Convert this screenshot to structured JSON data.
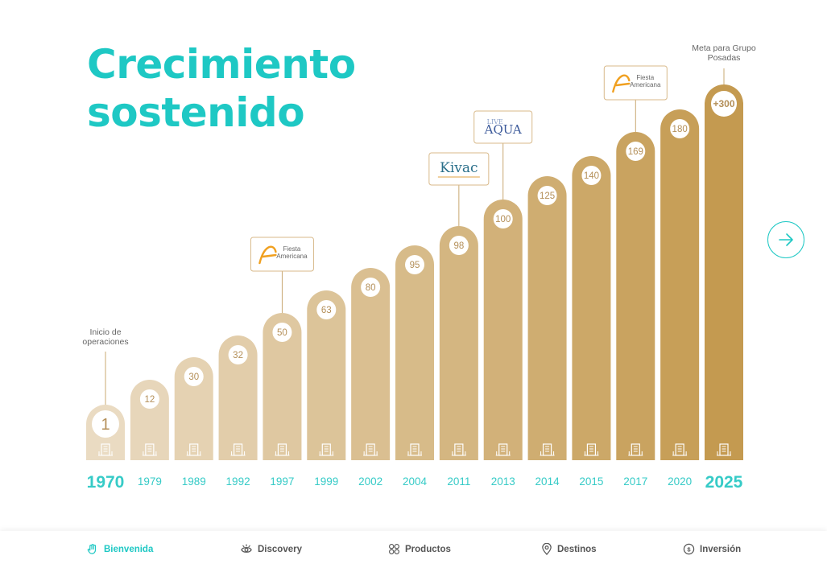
{
  "title_line1": "Crecimiento",
  "title_line2": "sostenido",
  "chart_data": {
    "type": "bar",
    "categories": [
      "1970",
      "1979",
      "1989",
      "1992",
      "1997",
      "1999",
      "2002",
      "2004",
      "2011",
      "2013",
      "2014",
      "2015",
      "2017",
      "2020",
      "2025"
    ],
    "values": [
      1,
      12,
      30,
      32,
      50,
      63,
      80,
      95,
      98,
      100,
      125,
      140,
      169,
      180,
      300
    ],
    "labels": [
      "1",
      "12",
      "30",
      "32",
      "50",
      "63",
      "80",
      "95",
      "98",
      "100",
      "125",
      "140",
      "169",
      "180",
      "+300"
    ],
    "annotations": [
      {
        "category": "1970",
        "text": [
          "Inicio de",
          "operaciones"
        ]
      },
      {
        "category": "2025",
        "text": [
          "Meta para Grupo",
          "Posadas"
        ]
      }
    ],
    "brand_logos": [
      {
        "category": "1997",
        "brand": "Fiesta Americana",
        "lines": [
          "Fiesta",
          "Americana"
        ]
      },
      {
        "category": "2011",
        "brand": "Kivac",
        "lines": [
          "Kivac"
        ]
      },
      {
        "category": "2013",
        "brand": "Live Aqua",
        "lines": [
          "LIVE",
          "AQUA"
        ]
      },
      {
        "category": "2017",
        "brand": "Fiesta Americana",
        "lines": [
          "Fiesta",
          "Americana"
        ]
      }
    ],
    "highlight_years": [
      "1970",
      "2025"
    ],
    "colors": {
      "start": "#eadbc2",
      "end": "#c49a50",
      "year_text": "#36cbc7",
      "title": "#1ec8c4",
      "value_text": "#b48f58"
    }
  },
  "next_button": {
    "icon": "arrow-right-icon"
  },
  "nav": [
    {
      "label": "Bienvenida",
      "icon": "hand-icon",
      "active": true
    },
    {
      "label": "Discovery",
      "icon": "eye-icon",
      "active": false
    },
    {
      "label": "Productos",
      "icon": "grid-icon",
      "active": false
    },
    {
      "label": "Destinos",
      "icon": "location-pin-icon",
      "active": false
    },
    {
      "label": "Inversión",
      "icon": "coin-icon",
      "active": false
    }
  ]
}
